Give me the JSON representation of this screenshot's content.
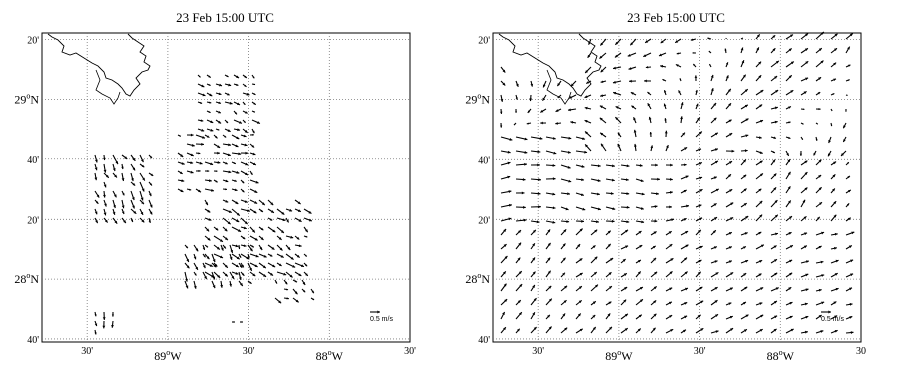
{
  "panels": [
    {
      "id": "hf-radar-observed",
      "title": "23 Feb 15:00 UTC",
      "lat_ticks": [
        {
          "value": 28.67,
          "label": "40'",
          "major": false
        },
        {
          "value": 28.333,
          "label": "20'",
          "major": false
        },
        {
          "value": 28.0,
          "label": "28°N",
          "deg": "28",
          "hemi": "N",
          "major": true
        },
        {
          "value": 27.667,
          "label": "40'",
          "major": false
        },
        {
          "value": 29.0,
          "label": "29°N",
          "deg": "29",
          "hemi": "N",
          "major": true
        },
        {
          "value": 29.333,
          "label": "20'",
          "major": false
        }
      ],
      "lon_ticks": [
        {
          "value": -89.5,
          "label": "30'",
          "major": false
        },
        {
          "value": -89.0,
          "label": "89°W",
          "deg": "89",
          "hemi": "W",
          "major": true
        },
        {
          "value": -88.5,
          "label": "30'",
          "major": false
        },
        {
          "value": -88.0,
          "label": "88°W",
          "deg": "88",
          "hemi": "W",
          "major": true
        },
        {
          "value": -87.5,
          "label": "30'",
          "major": false
        }
      ],
      "scale_label": "0.5 m/s",
      "coverage": "patchy"
    },
    {
      "id": "model-field",
      "title": "23 Feb 15:00 UTC",
      "lat_ticks": [
        {
          "value": 29.333,
          "label": "20'",
          "major": false
        },
        {
          "value": 29.0,
          "label": "29°N",
          "deg": "29",
          "hemi": "N",
          "major": true
        },
        {
          "value": 28.667,
          "label": "40'",
          "major": false
        },
        {
          "value": 28.333,
          "label": "20'",
          "major": false
        },
        {
          "value": 28.0,
          "label": "28°N",
          "deg": "28",
          "hemi": "N",
          "major": true
        },
        {
          "value": 27.667,
          "label": "40'",
          "major": false
        }
      ],
      "lon_ticks": [
        {
          "value": -89.5,
          "label": "30'",
          "major": false
        },
        {
          "value": -89.0,
          "label": "89°W",
          "deg": "89",
          "hemi": "W",
          "major": true
        },
        {
          "value": -88.5,
          "label": "30'",
          "major": false
        },
        {
          "value": -88.0,
          "label": "88°W",
          "deg": "88",
          "hemi": "W",
          "major": true
        },
        {
          "value": -87.5,
          "label": "30",
          "major": false
        }
      ],
      "scale_label": "0.5 m/s",
      "coverage": "full"
    }
  ],
  "map": {
    "lon_range": [
      -89.78,
      -87.5
    ],
    "lat_range": [
      27.65,
      29.37
    ],
    "grid": true,
    "land_color": "#ffffff",
    "vector_color": "#000000",
    "coastline": "Mississippi River Delta (upper-left)"
  }
}
